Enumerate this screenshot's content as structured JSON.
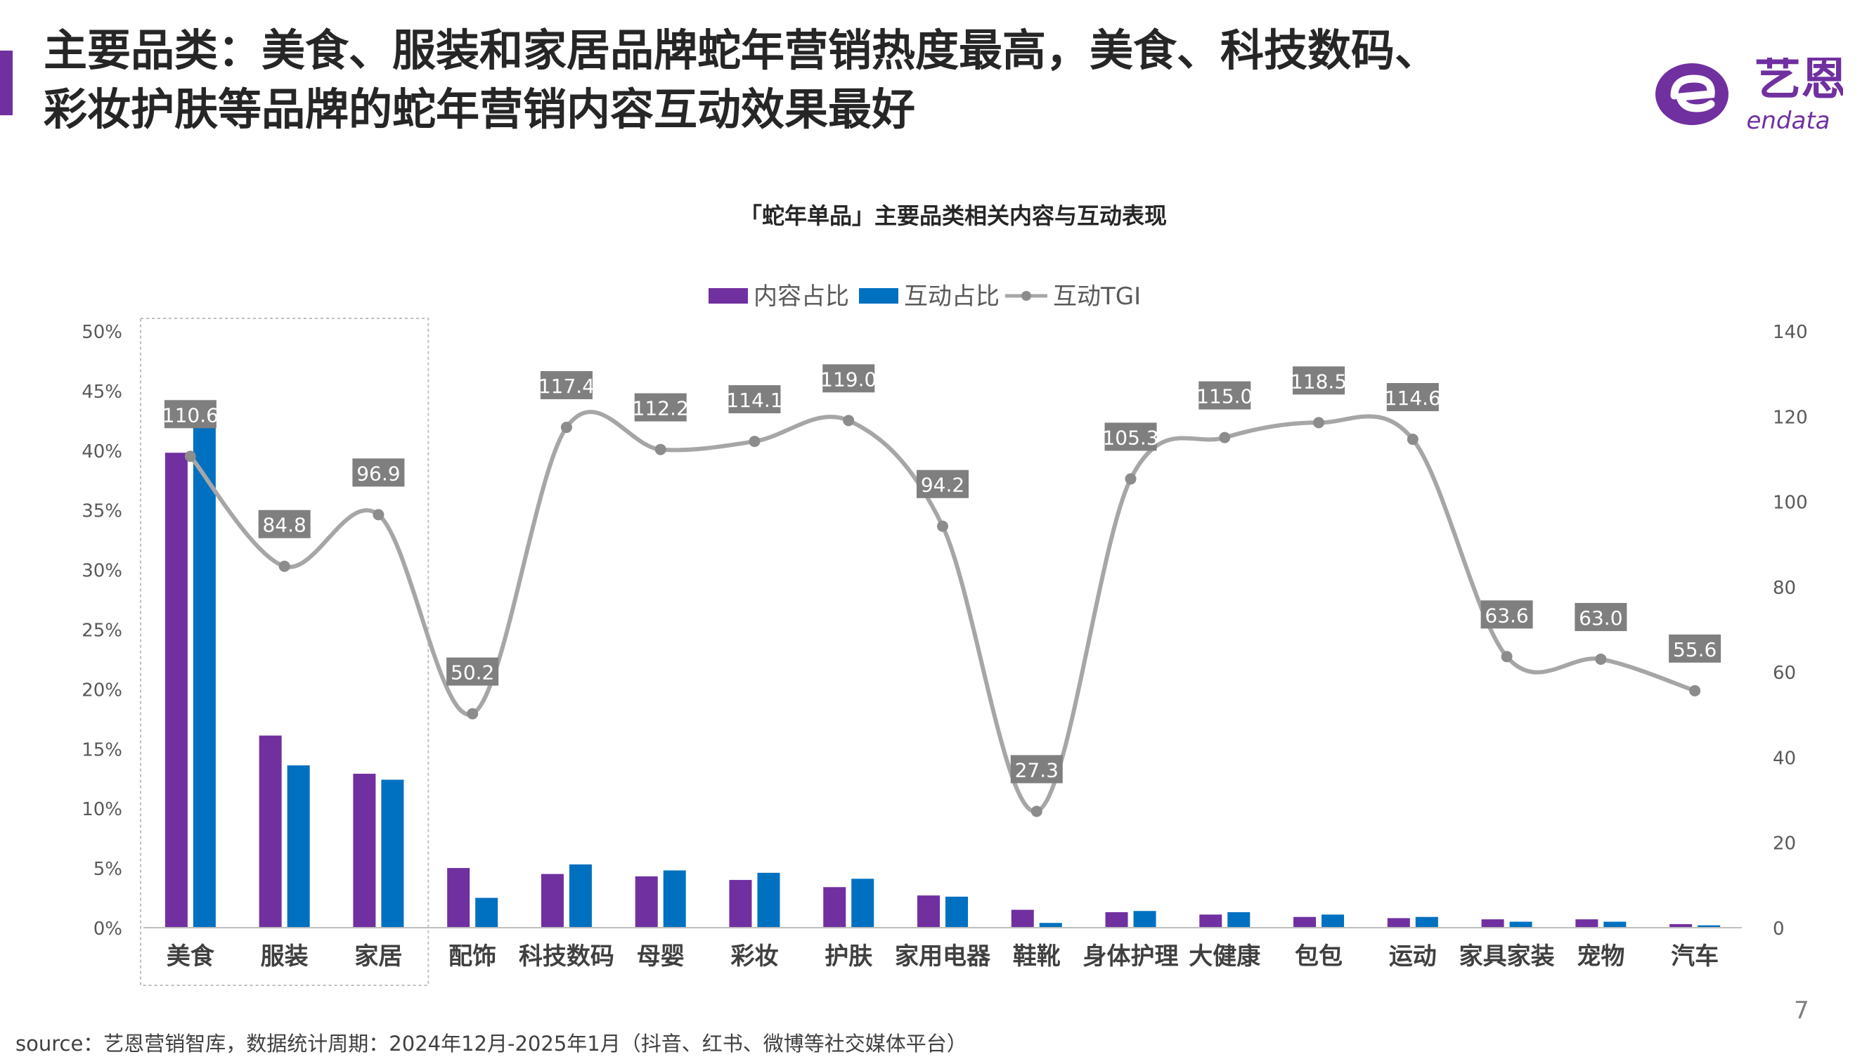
{
  "header": {
    "title_line1": "主要品类：美食、服装和家居品牌蛇年营销热度最高，美食、科技数码、",
    "title_line2": "彩妆护肤等品牌的蛇年营销内容互动效果最好"
  },
  "logo": {
    "text_cn": "艺恩",
    "text_en": "endata"
  },
  "page_number": "7",
  "source": "source：艺恩营销智库，数据统计周期：2024年12月-2025年1月（抖音、红书、微博等社交媒体平台）",
  "colors": {
    "accent": "#7030A0",
    "content_bar": "#7030A0",
    "interaction_bar": "#0070C0",
    "tgi_line": "#A6A6A6",
    "tgi_marker": "#8C8C8C",
    "tgi_label_bg": "#7F7F7F"
  },
  "chart_data": {
    "type": "bar",
    "title": "「蛇年单品」主要品类相关内容与互动表现",
    "categories": [
      "美食",
      "服装",
      "家居",
      "配饰",
      "科技数码",
      "母婴",
      "彩妆",
      "护肤",
      "家用电器",
      "鞋靴",
      "身体护理",
      "大健康",
      "包包",
      "运动",
      "家具家装",
      "宠物",
      "汽车"
    ],
    "series": [
      {
        "name": "内容占比",
        "kind": "bar",
        "axis": "left",
        "values": [
          39.8,
          16.1,
          12.9,
          5.0,
          4.5,
          4.3,
          4.0,
          3.4,
          2.7,
          1.5,
          1.3,
          1.1,
          0.9,
          0.8,
          0.7,
          0.7,
          0.3
        ]
      },
      {
        "name": "互动占比",
        "kind": "bar",
        "axis": "left",
        "values": [
          44.1,
          13.6,
          12.4,
          2.5,
          5.3,
          4.8,
          4.6,
          4.1,
          2.6,
          0.4,
          1.4,
          1.3,
          1.1,
          0.9,
          0.5,
          0.5,
          0.2
        ]
      },
      {
        "name": "互动TGI",
        "kind": "line",
        "axis": "right",
        "smooth": true,
        "values": [
          110.6,
          84.8,
          96.9,
          50.2,
          117.4,
          112.2,
          114.1,
          119.0,
          94.2,
          27.3,
          105.3,
          115.0,
          118.5,
          114.6,
          63.6,
          63.0,
          55.6
        ]
      }
    ],
    "y_left": {
      "min": 0,
      "max": 50,
      "ticks": [
        "0%",
        "5%",
        "10%",
        "15%",
        "20%",
        "25%",
        "30%",
        "35%",
        "40%",
        "45%",
        "50%"
      ]
    },
    "y_right": {
      "min": 0,
      "max": 140,
      "ticks": [
        "0",
        "20",
        "40",
        "60",
        "80",
        "100",
        "120",
        "140"
      ]
    },
    "legend_position": "top-center",
    "highlight_box": [
      "美食",
      "家居"
    ],
    "grid": false
  }
}
